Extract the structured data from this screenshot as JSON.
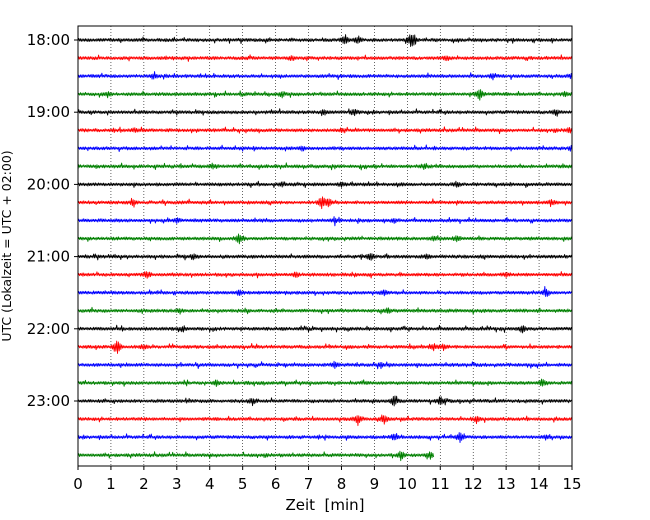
{
  "chart_data": {
    "type": "line",
    "title": "",
    "xlabel": "Zeit  [min]",
    "ylabel": "UTC (Lokalzeit = UTC + 02:00)",
    "xlim": [
      0,
      15
    ],
    "x_ticks": [
      0,
      1,
      2,
      3,
      4,
      5,
      6,
      7,
      8,
      9,
      10,
      11,
      12,
      13,
      14,
      15
    ],
    "x_tick_labels": [
      "0",
      "1",
      "2",
      "3",
      "4",
      "5",
      "6",
      "7",
      "8",
      "9",
      "10",
      "11",
      "12",
      "13",
      "14",
      "15"
    ],
    "y_tick_labels": [
      "18:00",
      "19:00",
      "20:00",
      "21:00",
      "22:00",
      "23:00"
    ],
    "y_tick_rows": [
      0,
      4,
      8,
      12,
      16,
      20
    ],
    "grid": "vertical dotted",
    "legend": "none",
    "trace_colors": [
      "#000000",
      "#ff0000",
      "#0000ff",
      "#008000"
    ],
    "series": [
      {
        "start": "18:00",
        "color": "#000000",
        "duration_min": 15,
        "events": [
          {
            "t": 8.1,
            "amp": 0.6
          },
          {
            "t": 8.5,
            "amp": 0.5
          },
          {
            "t": 10.1,
            "amp": 0.7
          },
          {
            "t": 10.2,
            "amp": 0.6
          }
        ]
      },
      {
        "start": "18:15",
        "color": "#ff0000",
        "duration_min": 15,
        "events": [
          {
            "t": 6.5,
            "amp": 0.25
          },
          {
            "t": 11.2,
            "amp": 0.3
          }
        ]
      },
      {
        "start": "18:30",
        "color": "#0000ff",
        "duration_min": 15,
        "events": [
          {
            "t": 2.3,
            "amp": 0.3
          },
          {
            "t": 12.6,
            "amp": 0.35
          },
          {
            "t": 15.0,
            "amp": 0.35
          }
        ]
      },
      {
        "start": "18:45",
        "color": "#008000",
        "duration_min": 15,
        "events": [
          {
            "t": 0.9,
            "amp": 0.35
          },
          {
            "t": 6.2,
            "amp": 0.3
          },
          {
            "t": 12.2,
            "amp": 0.9
          },
          {
            "t": 14.8,
            "amp": 0.35
          }
        ]
      },
      {
        "start": "19:00",
        "color": "#000000",
        "duration_min": 15,
        "events": [
          {
            "t": 7.5,
            "amp": 0.3
          },
          {
            "t": 8.4,
            "amp": 0.35
          },
          {
            "t": 14.5,
            "amp": 0.3
          }
        ]
      },
      {
        "start": "19:15",
        "color": "#ff0000",
        "duration_min": 15,
        "events": [
          {
            "t": 1.7,
            "amp": 0.25
          },
          {
            "t": 8.0,
            "amp": 0.25
          },
          {
            "t": 14.9,
            "amp": 0.3
          }
        ]
      },
      {
        "start": "19:30",
        "color": "#0000ff",
        "duration_min": 15,
        "events": [
          {
            "t": 6.8,
            "amp": 0.25
          },
          {
            "t": 15.0,
            "amp": 0.35
          }
        ]
      },
      {
        "start": "19:45",
        "color": "#008000",
        "duration_min": 15,
        "events": [
          {
            "t": 4.1,
            "amp": 0.25
          },
          {
            "t": 10.5,
            "amp": 0.3
          }
        ]
      },
      {
        "start": "20:00",
        "color": "#000000",
        "duration_min": 15,
        "events": [
          {
            "t": 6.2,
            "amp": 0.3
          },
          {
            "t": 8.0,
            "amp": 0.35
          },
          {
            "t": 11.5,
            "amp": 0.35
          }
        ]
      },
      {
        "start": "20:15",
        "color": "#ff0000",
        "duration_min": 15,
        "events": [
          {
            "t": 1.7,
            "amp": 0.4
          },
          {
            "t": 7.4,
            "amp": 0.8
          },
          {
            "t": 7.6,
            "amp": 0.5
          },
          {
            "t": 14.4,
            "amp": 0.3
          }
        ]
      },
      {
        "start": "20:30",
        "color": "#0000ff",
        "duration_min": 15,
        "events": [
          {
            "t": 3.0,
            "amp": 0.25
          },
          {
            "t": 7.8,
            "amp": 0.3
          },
          {
            "t": 9.6,
            "amp": 0.25
          }
        ]
      },
      {
        "start": "20:45",
        "color": "#008000",
        "duration_min": 15,
        "events": [
          {
            "t": 4.9,
            "amp": 0.7
          },
          {
            "t": 10.8,
            "amp": 0.35
          },
          {
            "t": 11.5,
            "amp": 0.35
          }
        ]
      },
      {
        "start": "21:00",
        "color": "#000000",
        "duration_min": 15,
        "events": [
          {
            "t": 3.5,
            "amp": 0.3
          },
          {
            "t": 8.9,
            "amp": 0.45
          },
          {
            "t": 10.6,
            "amp": 0.3
          }
        ]
      },
      {
        "start": "21:15",
        "color": "#ff0000",
        "duration_min": 15,
        "events": [
          {
            "t": 2.1,
            "amp": 0.5
          },
          {
            "t": 6.6,
            "amp": 0.3
          },
          {
            "t": 13.0,
            "amp": 0.3
          }
        ]
      },
      {
        "start": "21:30",
        "color": "#0000ff",
        "duration_min": 15,
        "events": [
          {
            "t": 4.9,
            "amp": 0.35
          },
          {
            "t": 9.3,
            "amp": 0.35
          },
          {
            "t": 14.2,
            "amp": 0.6
          }
        ]
      },
      {
        "start": "21:45",
        "color": "#008000",
        "duration_min": 15,
        "events": [
          {
            "t": 3.1,
            "amp": 0.3
          },
          {
            "t": 9.4,
            "amp": 0.3
          }
        ]
      },
      {
        "start": "22:00",
        "color": "#000000",
        "duration_min": 15,
        "events": [
          {
            "t": 3.2,
            "amp": 0.3
          },
          {
            "t": 13.5,
            "amp": 0.45
          }
        ]
      },
      {
        "start": "22:15",
        "color": "#ff0000",
        "duration_min": 15,
        "events": [
          {
            "t": 1.2,
            "amp": 0.9
          },
          {
            "t": 2.0,
            "amp": 0.3
          },
          {
            "t": 10.8,
            "amp": 0.4
          },
          {
            "t": 11.1,
            "amp": 0.35
          }
        ]
      },
      {
        "start": "22:30",
        "color": "#0000ff",
        "duration_min": 15,
        "events": [
          {
            "t": 7.8,
            "amp": 0.5
          },
          {
            "t": 9.2,
            "amp": 0.3
          }
        ]
      },
      {
        "start": "22:45",
        "color": "#008000",
        "duration_min": 15,
        "events": [
          {
            "t": 4.2,
            "amp": 0.3
          },
          {
            "t": 14.1,
            "amp": 0.5
          }
        ]
      },
      {
        "start": "23:00",
        "color": "#000000",
        "duration_min": 15,
        "events": [
          {
            "t": 5.3,
            "amp": 0.4
          },
          {
            "t": 9.6,
            "amp": 0.75
          },
          {
            "t": 11.0,
            "amp": 0.6
          }
        ]
      },
      {
        "start": "23:15",
        "color": "#ff0000",
        "duration_min": 15,
        "events": [
          {
            "t": 8.5,
            "amp": 0.7
          },
          {
            "t": 9.3,
            "amp": 0.5
          },
          {
            "t": 12.1,
            "amp": 0.35
          }
        ]
      },
      {
        "start": "23:30",
        "color": "#0000ff",
        "duration_min": 15,
        "events": [
          {
            "t": 9.6,
            "amp": 0.45
          },
          {
            "t": 11.6,
            "amp": 0.6
          },
          {
            "t": 14.2,
            "amp": 0.3
          }
        ]
      },
      {
        "start": "23:45",
        "color": "#008000",
        "duration_min": 10.8,
        "events": [
          {
            "t": 9.8,
            "amp": 0.6
          },
          {
            "t": 10.7,
            "amp": 0.5
          }
        ]
      }
    ]
  }
}
